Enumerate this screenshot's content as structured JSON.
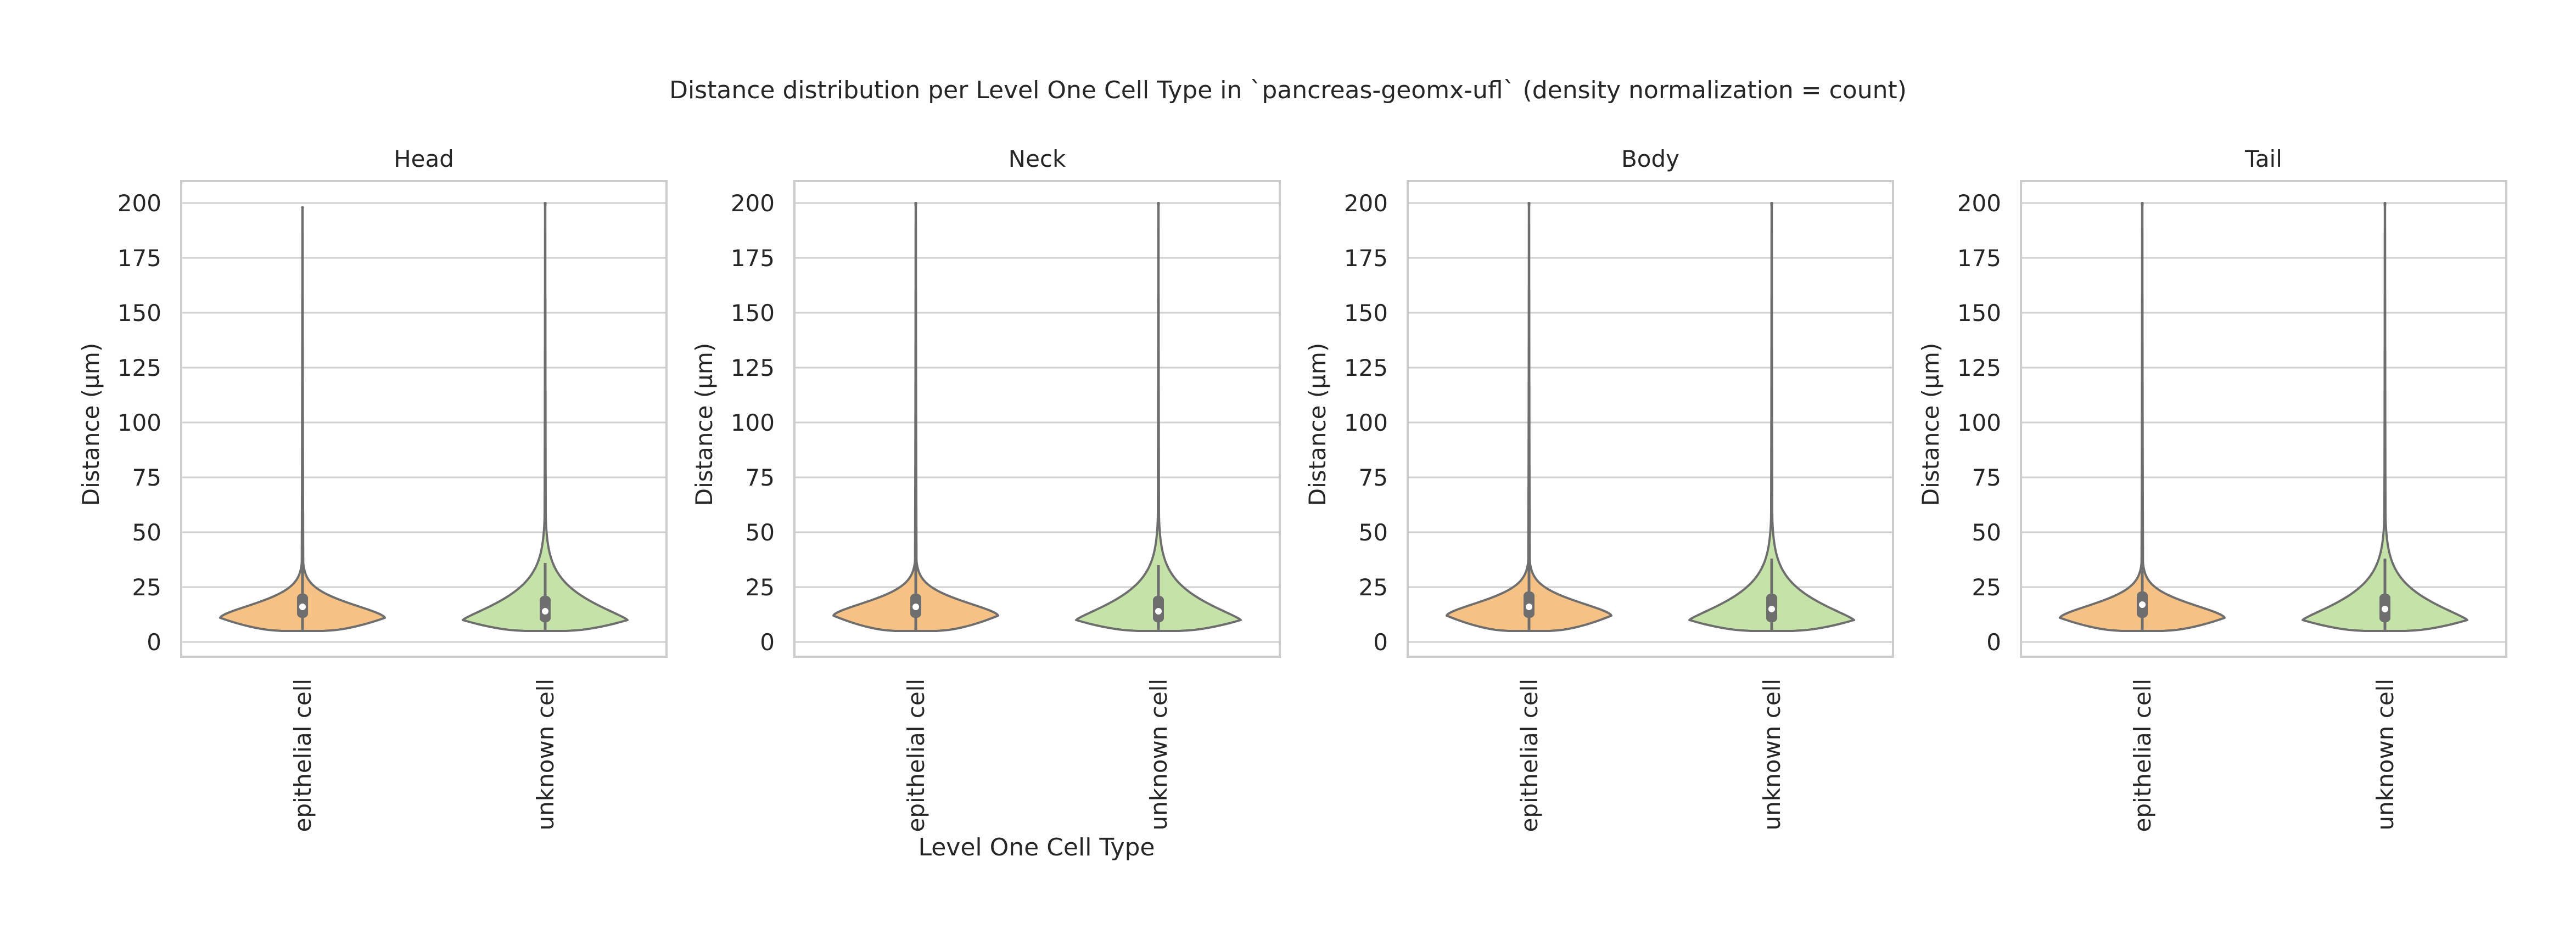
{
  "figure": {
    "suptitle": "Distance distribution per Level One Cell Type in `pancreas-geomx-ufl` (density normalization = count)",
    "xlabel": "Level One Cell Type",
    "ylabel": "Distance (µm)"
  },
  "colors": {
    "epithelial cell": "#f6c184",
    "unknown cell": "#c5e3a8",
    "outline": "#6e6e6e",
    "grid": "#d0d0d0",
    "frame": "#cccccc"
  },
  "chart_data": {
    "type": "violin",
    "density_normalization": "count",
    "categories": [
      "epithelial cell",
      "unknown cell"
    ],
    "ylim": [
      -3,
      204
    ],
    "yticks": [
      0,
      25,
      50,
      75,
      100,
      125,
      150,
      175,
      200
    ],
    "grid": true,
    "panels": [
      {
        "title": "Head",
        "violins": [
          {
            "category": "epithelial cell",
            "min": 5,
            "max": 198,
            "q1": 11,
            "median": 16,
            "q3": 22,
            "whisker_high": 38,
            "peak_distance": 11
          },
          {
            "category": "unknown cell",
            "min": 5,
            "max": 200,
            "q1": 9,
            "median": 14,
            "q3": 21,
            "whisker_high": 36,
            "peak_distance": 10
          }
        ]
      },
      {
        "title": "Neck",
        "violins": [
          {
            "category": "epithelial cell",
            "min": 5,
            "max": 200,
            "q1": 11,
            "median": 16,
            "q3": 22,
            "whisker_high": 37,
            "peak_distance": 12
          },
          {
            "category": "unknown cell",
            "min": 5,
            "max": 200,
            "q1": 9,
            "median": 14,
            "q3": 21,
            "whisker_high": 35,
            "peak_distance": 10
          }
        ]
      },
      {
        "title": "Body",
        "violins": [
          {
            "category": "epithelial cell",
            "min": 5,
            "max": 200,
            "q1": 11,
            "median": 16,
            "q3": 23,
            "whisker_high": 38,
            "peak_distance": 12
          },
          {
            "category": "unknown cell",
            "min": 5,
            "max": 200,
            "q1": 9,
            "median": 15,
            "q3": 22,
            "whisker_high": 38,
            "peak_distance": 10
          }
        ]
      },
      {
        "title": "Tail",
        "violins": [
          {
            "category": "epithelial cell",
            "min": 5,
            "max": 200,
            "q1": 11,
            "median": 17,
            "q3": 23,
            "whisker_high": 38,
            "peak_distance": 11
          },
          {
            "category": "unknown cell",
            "min": 5,
            "max": 200,
            "q1": 9,
            "median": 15,
            "q3": 22,
            "whisker_high": 38,
            "peak_distance": 10
          }
        ]
      }
    ]
  }
}
